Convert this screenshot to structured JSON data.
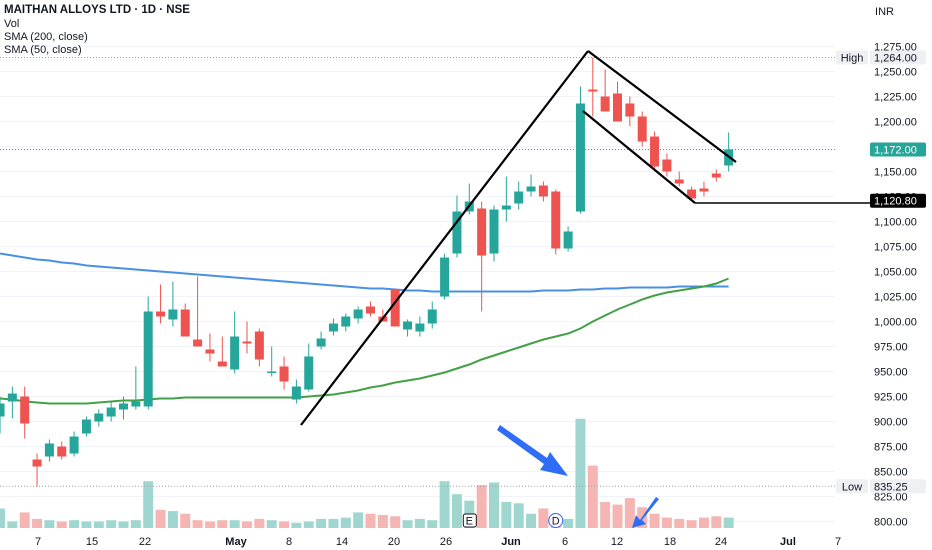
{
  "header": {
    "title": "MAITHAN ALLOYS LTD · 1D · NSE",
    "volume_label": "Vol",
    "sma200_label": "SMA (200, close)",
    "sma50_label": "SMA (50, close)",
    "currency": "INR"
  },
  "colors": {
    "up": "#26a69a",
    "down": "#ef5350",
    "vol_up": "#9fd7d0",
    "vol_down": "#f5b5b3",
    "sma200": "#4a90e2",
    "sma50": "#43a047",
    "annotation": "#000000",
    "arrow": "#2f6df6",
    "last_price": "#26a69a",
    "event_line": "#000000"
  },
  "chart_data": {
    "type": "candlestick",
    "y_axis": {
      "ticks": [
        800,
        825,
        850,
        875,
        900,
        925,
        950,
        975,
        1000,
        1025,
        1050,
        1075,
        1100,
        1125,
        1150,
        1175,
        1200,
        1225,
        1250,
        1275
      ],
      "tick_labels": [
        "800.00",
        "825.00",
        "850.00",
        "875.00",
        "900.00",
        "925.00",
        "950.00",
        "975.00",
        "1,000.00",
        "1,025.00",
        "1,050.00",
        "1,075.00",
        "1,100.00",
        "1,125.00",
        "1,150.00",
        "1,175.00",
        "1,200.00",
        "1,225.00",
        "1,250.00",
        "1,275.00"
      ],
      "range": [
        795,
        1285
      ]
    },
    "x_axis": {
      "labels": [
        "7",
        "15",
        "22",
        "May",
        "8",
        "14",
        "20",
        "26",
        "Jun",
        "6",
        "12",
        "18",
        "24",
        "Jul",
        "7"
      ]
    },
    "price_labels": {
      "high": {
        "label": "High",
        "value": "1,264.00",
        "price": 1264
      },
      "last": {
        "value": "1,172.00",
        "price": 1172
      },
      "support": {
        "value": "1,120.80",
        "price": 1120.8
      },
      "low": {
        "label": "Low",
        "value": "835.25",
        "price": 835.25
      }
    },
    "candles": [
      {
        "o": 905,
        "h": 925,
        "l": 888,
        "c": 918
      },
      {
        "o": 920,
        "h": 935,
        "l": 903,
        "c": 928
      },
      {
        "o": 925,
        "h": 935,
        "l": 883,
        "c": 898
      },
      {
        "o": 862,
        "h": 868,
        "l": 835,
        "c": 855
      },
      {
        "o": 865,
        "h": 882,
        "l": 860,
        "c": 878
      },
      {
        "o": 875,
        "h": 880,
        "l": 862,
        "c": 865
      },
      {
        "o": 868,
        "h": 890,
        "l": 865,
        "c": 885
      },
      {
        "o": 888,
        "h": 905,
        "l": 885,
        "c": 902
      },
      {
        "o": 900,
        "h": 912,
        "l": 895,
        "c": 908
      },
      {
        "o": 905,
        "h": 920,
        "l": 900,
        "c": 914
      },
      {
        "o": 912,
        "h": 925,
        "l": 902,
        "c": 918
      },
      {
        "o": 915,
        "h": 955,
        "l": 912,
        "c": 920
      },
      {
        "o": 915,
        "h": 1025,
        "l": 912,
        "c": 1010
      },
      {
        "o": 1010,
        "h": 1037,
        "l": 998,
        "c": 1005
      },
      {
        "o": 1002,
        "h": 1040,
        "l": 995,
        "c": 1012
      },
      {
        "o": 1012,
        "h": 1018,
        "l": 985,
        "c": 985
      },
      {
        "o": 982,
        "h": 1045,
        "l": 975,
        "c": 975
      },
      {
        "o": 972,
        "h": 988,
        "l": 960,
        "c": 968
      },
      {
        "o": 960,
        "h": 985,
        "l": 955,
        "c": 955
      },
      {
        "o": 952,
        "h": 1010,
        "l": 948,
        "c": 985
      },
      {
        "o": 980,
        "h": 1000,
        "l": 968,
        "c": 978
      },
      {
        "o": 990,
        "h": 993,
        "l": 955,
        "c": 962
      },
      {
        "o": 950,
        "h": 975,
        "l": 945,
        "c": 950
      },
      {
        "o": 955,
        "h": 965,
        "l": 932,
        "c": 940
      },
      {
        "o": 922,
        "h": 942,
        "l": 918,
        "c": 935
      },
      {
        "o": 932,
        "h": 978,
        "l": 930,
        "c": 965
      },
      {
        "o": 975,
        "h": 990,
        "l": 972,
        "c": 983
      },
      {
        "o": 990,
        "h": 1003,
        "l": 986,
        "c": 998
      },
      {
        "o": 995,
        "h": 1008,
        "l": 990,
        "c": 1005
      },
      {
        "o": 1003,
        "h": 1015,
        "l": 998,
        "c": 1012
      },
      {
        "o": 1015,
        "h": 1020,
        "l": 1005,
        "c": 1008
      },
      {
        "o": 1005,
        "h": 1012,
        "l": 1000,
        "c": 1000
      },
      {
        "o": 1032,
        "h": 1033,
        "l": 995,
        "c": 995
      },
      {
        "o": 992,
        "h": 1002,
        "l": 985,
        "c": 1000
      },
      {
        "o": 990,
        "h": 1005,
        "l": 985,
        "c": 998
      },
      {
        "o": 998,
        "h": 1020,
        "l": 993,
        "c": 1012
      },
      {
        "o": 1025,
        "h": 1068,
        "l": 1022,
        "c": 1064
      },
      {
        "o": 1068,
        "h": 1126,
        "l": 1064,
        "c": 1110
      },
      {
        "o": 1110,
        "h": 1138,
        "l": 1107,
        "c": 1120
      },
      {
        "o": 1113,
        "h": 1120,
        "l": 1010,
        "c": 1066
      },
      {
        "o": 1068,
        "h": 1116,
        "l": 1060,
        "c": 1112
      },
      {
        "o": 1112,
        "h": 1145,
        "l": 1100,
        "c": 1116
      },
      {
        "o": 1118,
        "h": 1140,
        "l": 1112,
        "c": 1130
      },
      {
        "o": 1130,
        "h": 1147,
        "l": 1125,
        "c": 1135
      },
      {
        "o": 1136,
        "h": 1140,
        "l": 1120,
        "c": 1125
      },
      {
        "o": 1130,
        "h": 1132,
        "l": 1067,
        "c": 1073
      },
      {
        "o": 1073,
        "h": 1095,
        "l": 1070,
        "c": 1090
      },
      {
        "o": 1110,
        "h": 1235,
        "l": 1108,
        "c": 1218
      },
      {
        "o": 1232,
        "h": 1264,
        "l": 1205,
        "c": 1230
      },
      {
        "o": 1225,
        "h": 1252,
        "l": 1210,
        "c": 1210
      },
      {
        "o": 1228,
        "h": 1240,
        "l": 1200,
        "c": 1200
      },
      {
        "o": 1218,
        "h": 1225,
        "l": 1195,
        "c": 1205
      },
      {
        "o": 1205,
        "h": 1210,
        "l": 1175,
        "c": 1180
      },
      {
        "o": 1185,
        "h": 1190,
        "l": 1150,
        "c": 1155
      },
      {
        "o": 1162,
        "h": 1168,
        "l": 1145,
        "c": 1150
      },
      {
        "o": 1142,
        "h": 1150,
        "l": 1135,
        "c": 1138
      },
      {
        "o": 1132,
        "h": 1135,
        "l": 1120,
        "c": 1123
      },
      {
        "o": 1133,
        "h": 1140,
        "l": 1125,
        "c": 1130
      },
      {
        "o": 1148,
        "h": 1152,
        "l": 1140,
        "c": 1144
      },
      {
        "o": 1156,
        "h": 1189,
        "l": 1150,
        "c": 1172
      }
    ],
    "volume_heights": [
      0.15,
      0.05,
      0.12,
      0.07,
      0.06,
      0.05,
      0.06,
      0.05,
      0.05,
      0.06,
      0.05,
      0.06,
      0.36,
      0.14,
      0.13,
      0.11,
      0.06,
      0.05,
      0.06,
      0.06,
      0.05,
      0.07,
      0.06,
      0.05,
      0.04,
      0.05,
      0.07,
      0.07,
      0.08,
      0.12,
      0.11,
      0.1,
      0.09,
      0.06,
      0.07,
      0.06,
      0.36,
      0.26,
      0.21,
      0.33,
      0.35,
      0.2,
      0.19,
      0.11,
      0.15,
      0.06,
      0.07,
      0.84,
      0.48,
      0.2,
      0.18,
      0.23,
      0.16,
      0.11,
      0.08,
      0.07,
      0.06,
      0.08,
      0.09,
      0.08
    ],
    "sma200": [
      1068,
      1066,
      1064,
      1062,
      1061,
      1059,
      1058,
      1056,
      1055,
      1054,
      1053,
      1052,
      1051,
      1050,
      1049,
      1048,
      1047,
      1046,
      1045,
      1044,
      1043,
      1042,
      1041,
      1040,
      1039,
      1038,
      1037,
      1036,
      1035,
      1034,
      1033,
      1033,
      1032,
      1031,
      1031,
      1030,
      1030,
      1030,
      1030,
      1030,
      1030,
      1030,
      1030,
      1030,
      1031,
      1031,
      1031,
      1032,
      1032,
      1033,
      1033,
      1034,
      1034,
      1034,
      1034,
      1035,
      1035,
      1035,
      1035,
      1035
    ],
    "sma50": [
      923,
      922,
      920,
      919,
      918,
      918,
      918,
      918,
      919,
      920,
      921,
      921,
      922,
      923,
      923,
      924,
      924,
      924,
      924,
      924,
      924,
      924,
      924,
      924,
      924,
      925,
      926,
      927,
      929,
      931,
      934,
      936,
      939,
      941,
      943,
      946,
      949,
      953,
      957,
      962,
      966,
      970,
      974,
      978,
      982,
      985,
      988,
      993,
      1000,
      1006,
      1012,
      1017,
      1022,
      1026,
      1029,
      1031,
      1033,
      1035,
      1038,
      1043
    ],
    "volume_badges": [
      "E",
      "D"
    ]
  }
}
